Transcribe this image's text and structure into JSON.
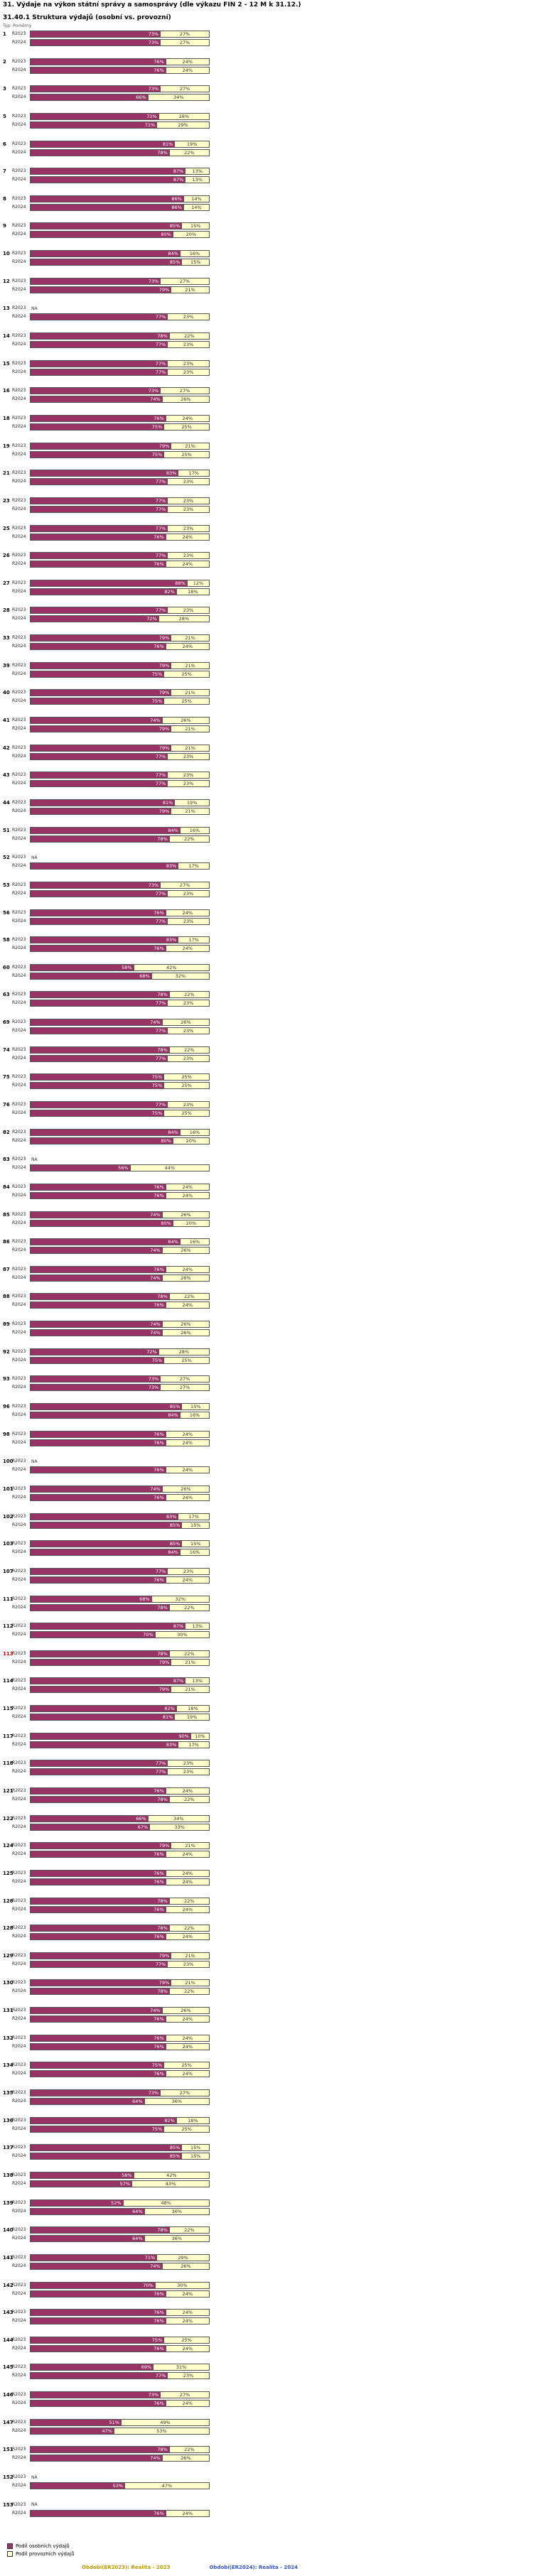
{
  "header": {
    "title": "31. Výdaje na výkon státní správy a samosprávy (dle výkazu FIN 2 - 12 M k 31.12.)",
    "subtitle": "31.40.1 Struktura výdajů (osobní vs. provozní)",
    "type_note": "Typ: Poměrný"
  },
  "footer": {
    "period_2023": "Období(ER2023): Realita - 2023",
    "period_2024": "Období(ER2024): Realita - 2024",
    "period_2023_color": "#bb9900",
    "period_2024_color": "#3355cc"
  },
  "colors": {
    "personal": "#993366",
    "operational": "#ffffcc",
    "highlight_row": "#cc0000"
  },
  "chart_data": {
    "type": "bar",
    "orientation": "horizontal",
    "stacked": true,
    "unit": "%",
    "xlim": [
      0,
      100
    ],
    "series_labels": [
      "R2023",
      "R2024"
    ],
    "legend": [
      {
        "label": "Podíl osobních výdajů",
        "color": "#993366"
      },
      {
        "label": "Podíl provozních výdajů",
        "color": "#ffffcc"
      }
    ],
    "na_text": "NA",
    "entities": [
      {
        "id": "1",
        "r2023": {
          "personal": 73,
          "operational": 27
        },
        "r2024": {
          "personal": 73,
          "operational": 27
        }
      },
      {
        "id": "2",
        "r2023": {
          "personal": 76,
          "operational": 24
        },
        "r2024": {
          "personal": 76,
          "operational": 24
        }
      },
      {
        "id": "3",
        "r2023": {
          "personal": 73,
          "operational": 27
        },
        "r2024": {
          "personal": 66,
          "operational": 34
        }
      },
      {
        "id": "5",
        "r2023": {
          "personal": 72,
          "operational": 28
        },
        "r2024": {
          "personal": 71,
          "operational": 29
        }
      },
      {
        "id": "6",
        "r2023": {
          "personal": 81,
          "operational": 19
        },
        "r2024": {
          "personal": 78,
          "operational": 22
        }
      },
      {
        "id": "7",
        "r2023": {
          "personal": 87,
          "operational": 13
        },
        "r2024": {
          "personal": 87,
          "operational": 13
        }
      },
      {
        "id": "8",
        "r2023": {
          "personal": 86,
          "operational": 14
        },
        "r2024": {
          "personal": 86,
          "operational": 14
        }
      },
      {
        "id": "9",
        "r2023": {
          "personal": 85,
          "operational": 15
        },
        "r2024": {
          "personal": 80,
          "operational": 20
        }
      },
      {
        "id": "10",
        "r2023": {
          "personal": 84,
          "operational": 16
        },
        "r2024": {
          "personal": 85,
          "operational": 15
        }
      },
      {
        "id": "12",
        "r2023": {
          "personal": 73,
          "operational": 27
        },
        "r2024": {
          "personal": 79,
          "operational": 21
        }
      },
      {
        "id": "13",
        "r2023": "NA",
        "r2024": {
          "personal": 77,
          "operational": 23
        }
      },
      {
        "id": "14",
        "r2023": {
          "personal": 78,
          "operational": 22
        },
        "r2024": {
          "personal": 77,
          "operational": 23
        }
      },
      {
        "id": "15",
        "r2023": {
          "personal": 77,
          "operational": 23
        },
        "r2024": {
          "personal": 77,
          "operational": 23
        }
      },
      {
        "id": "16",
        "r2023": {
          "personal": 73,
          "operational": 27
        },
        "r2024": {
          "personal": 74,
          "operational": 26
        }
      },
      {
        "id": "18",
        "r2023": {
          "personal": 76,
          "operational": 24
        },
        "r2024": {
          "personal": 75,
          "operational": 25
        }
      },
      {
        "id": "19",
        "r2023": {
          "personal": 79,
          "operational": 21
        },
        "r2024": {
          "personal": 75,
          "operational": 25
        }
      },
      {
        "id": "21",
        "r2023": {
          "personal": 83,
          "operational": 17
        },
        "r2024": {
          "personal": 77,
          "operational": 23
        }
      },
      {
        "id": "23",
        "r2023": {
          "personal": 77,
          "operational": 23
        },
        "r2024": {
          "personal": 77,
          "operational": 23
        }
      },
      {
        "id": "25",
        "r2023": {
          "personal": 77,
          "operational": 23
        },
        "r2024": {
          "personal": 76,
          "operational": 24
        }
      },
      {
        "id": "26",
        "r2023": {
          "personal": 77,
          "operational": 23
        },
        "r2024": {
          "personal": 76,
          "operational": 24
        }
      },
      {
        "id": "27",
        "r2023": {
          "personal": 88,
          "operational": 12
        },
        "r2024": {
          "personal": 82,
          "operational": 18
        }
      },
      {
        "id": "28",
        "r2023": {
          "personal": 77,
          "operational": 23
        },
        "r2024": {
          "personal": 72,
          "operational": 28
        }
      },
      {
        "id": "33",
        "r2023": {
          "personal": 79,
          "operational": 21
        },
        "r2024": {
          "personal": 76,
          "operational": 24
        }
      },
      {
        "id": "39",
        "r2023": {
          "personal": 79,
          "operational": 21
        },
        "r2024": {
          "personal": 75,
          "operational": 25
        }
      },
      {
        "id": "40",
        "r2023": {
          "personal": 79,
          "operational": 21
        },
        "r2024": {
          "personal": 75,
          "operational": 25
        }
      },
      {
        "id": "41",
        "r2023": {
          "personal": 74,
          "operational": 26
        },
        "r2024": {
          "personal": 79,
          "operational": 21
        }
      },
      {
        "id": "42",
        "r2023": {
          "personal": 79,
          "operational": 21
        },
        "r2024": {
          "personal": 77,
          "operational": 23
        }
      },
      {
        "id": "43",
        "r2023": {
          "personal": 77,
          "operational": 23
        },
        "r2024": {
          "personal": 77,
          "operational": 23
        }
      },
      {
        "id": "44",
        "r2023": {
          "personal": 81,
          "operational": 19
        },
        "r2024": {
          "personal": 79,
          "operational": 21
        }
      },
      {
        "id": "51",
        "r2023": {
          "personal": 84,
          "operational": 16
        },
        "r2024": {
          "personal": 78,
          "operational": 22
        }
      },
      {
        "id": "52",
        "r2023": "NA",
        "r2024": {
          "personal": 83,
          "operational": 17
        }
      },
      {
        "id": "53",
        "r2023": {
          "personal": 73,
          "operational": 27
        },
        "r2024": {
          "personal": 77,
          "operational": 23
        }
      },
      {
        "id": "56",
        "r2023": {
          "personal": 76,
          "operational": 24
        },
        "r2024": {
          "personal": 77,
          "operational": 23
        }
      },
      {
        "id": "58",
        "r2023": {
          "personal": 83,
          "operational": 17
        },
        "r2024": {
          "personal": 76,
          "operational": 24
        }
      },
      {
        "id": "60",
        "r2023": {
          "personal": 58,
          "operational": 42
        },
        "r2024": {
          "personal": 68,
          "operational": 32
        }
      },
      {
        "id": "63",
        "r2023": {
          "personal": 78,
          "operational": 22
        },
        "r2024": {
          "personal": 77,
          "operational": 23
        }
      },
      {
        "id": "69",
        "r2023": {
          "personal": 74,
          "operational": 26
        },
        "r2024": {
          "personal": 77,
          "operational": 23
        }
      },
      {
        "id": "74",
        "r2023": {
          "personal": 78,
          "operational": 22
        },
        "r2024": {
          "personal": 77,
          "operational": 23
        }
      },
      {
        "id": "75",
        "r2023": {
          "personal": 75,
          "operational": 25
        },
        "r2024": {
          "personal": 75,
          "operational": 25
        }
      },
      {
        "id": "76",
        "r2023": {
          "personal": 77,
          "operational": 23
        },
        "r2024": {
          "personal": 75,
          "operational": 25
        }
      },
      {
        "id": "82",
        "r2023": {
          "personal": 84,
          "operational": 16
        },
        "r2024": {
          "personal": 80,
          "operational": 20
        }
      },
      {
        "id": "83",
        "r2023": "NA",
        "r2024": {
          "personal": 56,
          "operational": 44
        }
      },
      {
        "id": "84",
        "r2023": {
          "personal": 76,
          "operational": 24
        },
        "r2024": {
          "personal": 76,
          "operational": 24
        }
      },
      {
        "id": "85",
        "r2023": {
          "personal": 74,
          "operational": 26
        },
        "r2024": {
          "personal": 80,
          "operational": 20
        }
      },
      {
        "id": "86",
        "r2023": {
          "personal": 84,
          "operational": 16
        },
        "r2024": {
          "personal": 74,
          "operational": 26
        }
      },
      {
        "id": "87",
        "r2023": {
          "personal": 76,
          "operational": 24
        },
        "r2024": {
          "personal": 74,
          "operational": 26
        }
      },
      {
        "id": "88",
        "r2023": {
          "personal": 78,
          "operational": 22
        },
        "r2024": {
          "personal": 76,
          "operational": 24
        }
      },
      {
        "id": "89",
        "r2023": {
          "personal": 74,
          "operational": 26
        },
        "r2024": {
          "personal": 74,
          "operational": 26
        }
      },
      {
        "id": "92",
        "r2023": {
          "personal": 72,
          "operational": 28
        },
        "r2024": {
          "personal": 75,
          "operational": 25
        }
      },
      {
        "id": "93",
        "r2023": {
          "personal": 73,
          "operational": 27
        },
        "r2024": {
          "personal": 73,
          "operational": 27
        }
      },
      {
        "id": "96",
        "r2023": {
          "personal": 85,
          "operational": 15
        },
        "r2024": {
          "personal": 84,
          "operational": 16
        }
      },
      {
        "id": "98",
        "r2023": {
          "personal": 76,
          "operational": 24
        },
        "r2024": {
          "personal": 76,
          "operational": 24
        }
      },
      {
        "id": "100",
        "r2023": "NA",
        "r2024": {
          "personal": 76,
          "operational": 24
        }
      },
      {
        "id": "101",
        "r2023": {
          "personal": 74,
          "operational": 26
        },
        "r2024": {
          "personal": 76,
          "operational": 24
        }
      },
      {
        "id": "102",
        "r2023": {
          "personal": 83,
          "operational": 17
        },
        "r2024": {
          "personal": 85,
          "operational": 15
        }
      },
      {
        "id": "103",
        "r2023": {
          "personal": 85,
          "operational": 15
        },
        "r2024": {
          "personal": 84,
          "operational": 16
        }
      },
      {
        "id": "107",
        "r2023": {
          "personal": 77,
          "operational": 23
        },
        "r2024": {
          "personal": 76,
          "operational": 24
        }
      },
      {
        "id": "111",
        "r2023": {
          "personal": 68,
          "operational": 32
        },
        "r2024": {
          "personal": 78,
          "operational": 22
        }
      },
      {
        "id": "112",
        "r2023": {
          "personal": 87,
          "operational": 13
        },
        "r2024": {
          "personal": 70,
          "operational": 30
        }
      },
      {
        "id": "113",
        "highlight": true,
        "r2023": {
          "personal": 78,
          "operational": 22
        },
        "r2024": {
          "personal": 79,
          "operational": 21
        }
      },
      {
        "id": "114",
        "r2023": {
          "personal": 87,
          "operational": 13
        },
        "r2024": {
          "personal": 79,
          "operational": 21
        }
      },
      {
        "id": "115",
        "r2023": {
          "personal": 82,
          "operational": 18
        },
        "r2024": {
          "personal": 81,
          "operational": 19
        }
      },
      {
        "id": "117",
        "r2023": {
          "personal": 90,
          "operational": 10
        },
        "r2024": {
          "personal": 83,
          "operational": 17
        }
      },
      {
        "id": "118",
        "r2023": {
          "personal": 77,
          "operational": 23
        },
        "r2024": {
          "personal": 77,
          "operational": 23
        }
      },
      {
        "id": "121",
        "r2023": {
          "personal": 76,
          "operational": 24
        },
        "r2024": {
          "personal": 78,
          "operational": 22
        }
      },
      {
        "id": "122",
        "r2023": {
          "personal": 66,
          "operational": 34
        },
        "r2024": {
          "personal": 67,
          "operational": 33
        }
      },
      {
        "id": "124",
        "r2023": {
          "personal": 79,
          "operational": 21
        },
        "r2024": {
          "personal": 76,
          "operational": 24
        }
      },
      {
        "id": "125",
        "r2023": {
          "personal": 76,
          "operational": 24
        },
        "r2024": {
          "personal": 76,
          "operational": 24
        }
      },
      {
        "id": "126",
        "r2023": {
          "personal": 78,
          "operational": 22
        },
        "r2024": {
          "personal": 76,
          "operational": 24
        }
      },
      {
        "id": "128",
        "r2023": {
          "personal": 78,
          "operational": 22
        },
        "r2024": {
          "personal": 76,
          "operational": 24
        }
      },
      {
        "id": "129",
        "r2023": {
          "personal": 79,
          "operational": 21
        },
        "r2024": {
          "personal": 77,
          "operational": 23
        }
      },
      {
        "id": "130",
        "r2023": {
          "personal": 79,
          "operational": 21
        },
        "r2024": {
          "personal": 78,
          "operational": 22
        }
      },
      {
        "id": "131",
        "r2023": {
          "personal": 74,
          "operational": 26
        },
        "r2024": {
          "personal": 76,
          "operational": 24
        }
      },
      {
        "id": "132",
        "r2023": {
          "personal": 76,
          "operational": 24
        },
        "r2024": {
          "personal": 76,
          "operational": 24
        }
      },
      {
        "id": "134",
        "r2023": {
          "personal": 75,
          "operational": 25
        },
        "r2024": {
          "personal": 76,
          "operational": 24
        }
      },
      {
        "id": "135",
        "r2023": {
          "personal": 73,
          "operational": 27
        },
        "r2024": {
          "personal": 64,
          "operational": 36
        }
      },
      {
        "id": "136",
        "r2023": {
          "personal": 82,
          "operational": 18
        },
        "r2024": {
          "personal": 75,
          "operational": 25
        }
      },
      {
        "id": "137",
        "r2023": {
          "personal": 85,
          "operational": 15
        },
        "r2024": {
          "personal": 85,
          "operational": 15
        }
      },
      {
        "id": "138",
        "r2023": {
          "personal": 58,
          "operational": 42
        },
        "r2024": {
          "personal": 57,
          "operational": 43
        }
      },
      {
        "id": "139",
        "r2023": {
          "personal": 52,
          "operational": 48
        },
        "r2024": {
          "personal": 64,
          "operational": 36
        }
      },
      {
        "id": "140",
        "r2023": {
          "personal": 78,
          "operational": 22
        },
        "r2024": {
          "personal": 64,
          "operational": 36
        }
      },
      {
        "id": "141",
        "r2023": {
          "personal": 71,
          "operational": 29
        },
        "r2024": {
          "personal": 74,
          "operational": 26
        }
      },
      {
        "id": "142",
        "r2023": {
          "personal": 70,
          "operational": 30
        },
        "r2024": {
          "personal": 76,
          "operational": 24
        }
      },
      {
        "id": "143",
        "r2023": {
          "personal": 76,
          "operational": 24
        },
        "r2024": {
          "personal": 76,
          "operational": 24
        }
      },
      {
        "id": "144",
        "r2023": {
          "personal": 75,
          "operational": 25
        },
        "r2024": {
          "personal": 76,
          "operational": 24
        }
      },
      {
        "id": "145",
        "r2023": {
          "personal": 69,
          "operational": 31
        },
        "r2024": {
          "personal": 77,
          "operational": 23
        }
      },
      {
        "id": "146",
        "r2023": {
          "personal": 73,
          "operational": 27
        },
        "r2024": {
          "personal": 76,
          "operational": 24
        }
      },
      {
        "id": "147",
        "r2023": {
          "personal": 51,
          "operational": 49
        },
        "r2024": {
          "personal": 47,
          "operational": 53
        }
      },
      {
        "id": "151",
        "r2023": {
          "personal": 78,
          "operational": 22
        },
        "r2024": {
          "personal": 74,
          "operational": 26
        }
      },
      {
        "id": "152",
        "r2023": "NA",
        "r2024": {
          "personal": 53,
          "operational": 47
        }
      },
      {
        "id": "153",
        "r2023": "NA",
        "r2024": {
          "personal": 76,
          "operational": 24
        }
      }
    ]
  }
}
